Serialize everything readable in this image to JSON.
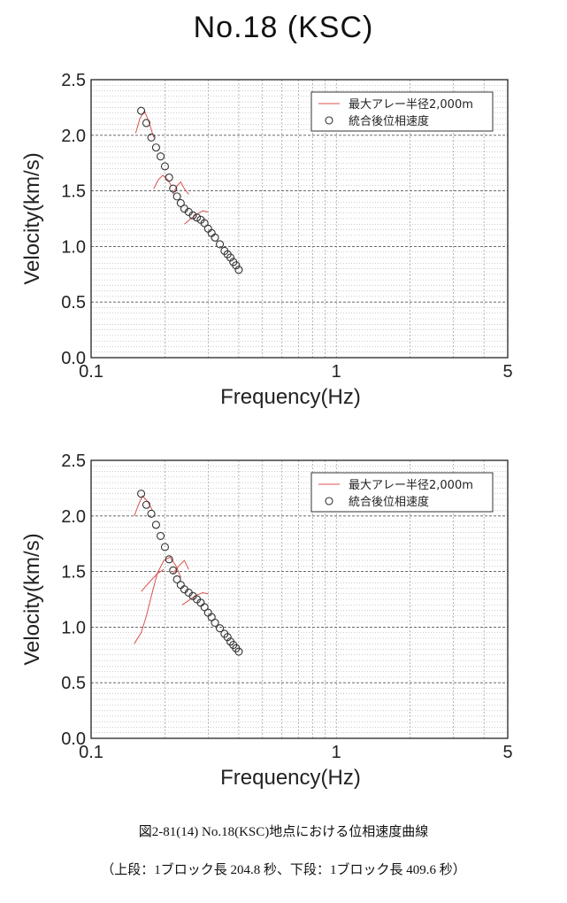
{
  "title": "No.18 (KSC)",
  "chart_data": [
    {
      "type": "scatter",
      "panel": "upper",
      "xlabel": "Frequency(Hz)",
      "ylabel": "Velocity(km/s)",
      "xscale": "log",
      "xlim": [
        0.1,
        5
      ],
      "ylim": [
        0.0,
        2.5
      ],
      "xtick_labels": [
        "0.1",
        "1",
        "5"
      ],
      "ytick_labels": [
        "0.0",
        "0.5",
        "1.0",
        "1.5",
        "2.0",
        "2.5"
      ],
      "grid": true,
      "legend_position": "top-right",
      "legend": [
        "最大アレー半径2,000m",
        "統合後位相速度"
      ],
      "series": [
        {
          "name": "最大アレー半径2,000m",
          "kind": "line",
          "color": "#d9534f",
          "segments": [
            [
              [
                0.152,
                2.02
              ],
              [
                0.158,
                2.15
              ],
              [
                0.165,
                2.22
              ],
              [
                0.172,
                2.12
              ],
              [
                0.18,
                1.98
              ]
            ],
            [
              [
                0.18,
                1.52
              ],
              [
                0.188,
                1.6
              ],
              [
                0.196,
                1.64
              ],
              [
                0.205,
                1.6
              ],
              [
                0.212,
                1.55
              ]
            ],
            [
              [
                0.215,
                1.47
              ],
              [
                0.225,
                1.55
              ],
              [
                0.232,
                1.58
              ],
              [
                0.24,
                1.52
              ],
              [
                0.25,
                1.47
              ]
            ],
            [
              [
                0.24,
                1.2
              ],
              [
                0.255,
                1.25
              ],
              [
                0.27,
                1.29
              ],
              [
                0.285,
                1.32
              ],
              [
                0.3,
                1.31
              ]
            ]
          ]
        },
        {
          "name": "統合後位相速度",
          "kind": "points",
          "color": "#333333",
          "x": [
            0.16,
            0.168,
            0.176,
            0.184,
            0.192,
            0.2,
            0.208,
            0.216,
            0.224,
            0.232,
            0.24,
            0.25,
            0.26,
            0.27,
            0.28,
            0.29,
            0.3,
            0.31,
            0.32,
            0.335,
            0.35,
            0.36,
            0.37,
            0.38,
            0.39,
            0.4
          ],
          "y": [
            2.22,
            2.11,
            1.98,
            1.89,
            1.81,
            1.72,
            1.62,
            1.52,
            1.45,
            1.39,
            1.34,
            1.31,
            1.28,
            1.26,
            1.24,
            1.21,
            1.16,
            1.12,
            1.08,
            1.02,
            0.96,
            0.93,
            0.9,
            0.86,
            0.83,
            0.79
          ]
        }
      ]
    },
    {
      "type": "scatter",
      "panel": "lower",
      "xlabel": "Frequency(Hz)",
      "ylabel": "Velocity(km/s)",
      "xscale": "log",
      "xlim": [
        0.1,
        5
      ],
      "ylim": [
        0.0,
        2.5
      ],
      "xtick_labels": [
        "0.1",
        "1",
        "5"
      ],
      "ytick_labels": [
        "0.0",
        "0.5",
        "1.0",
        "1.5",
        "2.0",
        "2.5"
      ],
      "grid": true,
      "legend_position": "top-right",
      "legend": [
        "最大アレー半径2,000m",
        "統合後位相速度"
      ],
      "series": [
        {
          "name": "最大アレー半径2,000m",
          "kind": "line",
          "color": "#d9534f",
          "segments": [
            [
              [
                0.15,
                2.0
              ],
              [
                0.156,
                2.1
              ],
              [
                0.162,
                2.18
              ],
              [
                0.17,
                2.13
              ],
              [
                0.178,
                2.05
              ]
            ],
            [
              [
                0.15,
                0.85
              ],
              [
                0.16,
                0.95
              ],
              [
                0.168,
                1.1
              ],
              [
                0.176,
                1.28
              ],
              [
                0.186,
                1.48
              ],
              [
                0.198,
                1.6
              ],
              [
                0.21,
                1.63
              ],
              [
                0.222,
                1.55
              ],
              [
                0.232,
                1.45
              ]
            ],
            [
              [
                0.16,
                1.32
              ],
              [
                0.172,
                1.4
              ],
              [
                0.186,
                1.48
              ],
              [
                0.198,
                1.52
              ]
            ],
            [
              [
                0.215,
                1.48
              ],
              [
                0.228,
                1.55
              ],
              [
                0.24,
                1.6
              ],
              [
                0.25,
                1.52
              ]
            ],
            [
              [
                0.235,
                1.2
              ],
              [
                0.25,
                1.24
              ],
              [
                0.265,
                1.28
              ],
              [
                0.285,
                1.31
              ],
              [
                0.3,
                1.3
              ]
            ]
          ]
        },
        {
          "name": "統合後位相速度",
          "kind": "points",
          "color": "#333333",
          "x": [
            0.16,
            0.168,
            0.176,
            0.184,
            0.192,
            0.2,
            0.208,
            0.216,
            0.224,
            0.232,
            0.24,
            0.25,
            0.26,
            0.27,
            0.28,
            0.29,
            0.3,
            0.31,
            0.32,
            0.335,
            0.35,
            0.36,
            0.37,
            0.38,
            0.39,
            0.4
          ],
          "y": [
            2.2,
            2.1,
            2.02,
            1.92,
            1.82,
            1.72,
            1.61,
            1.51,
            1.43,
            1.38,
            1.34,
            1.31,
            1.28,
            1.25,
            1.22,
            1.18,
            1.13,
            1.09,
            1.04,
            0.99,
            0.94,
            0.91,
            0.87,
            0.84,
            0.81,
            0.78
          ]
        }
      ]
    }
  ],
  "caption": {
    "line1": "図2-81(14) No.18(KSC)地点における位相速度曲線",
    "line2": "（上段：1ブロック長 204.8 秒、下段：1ブロック長 409.6 秒）"
  }
}
